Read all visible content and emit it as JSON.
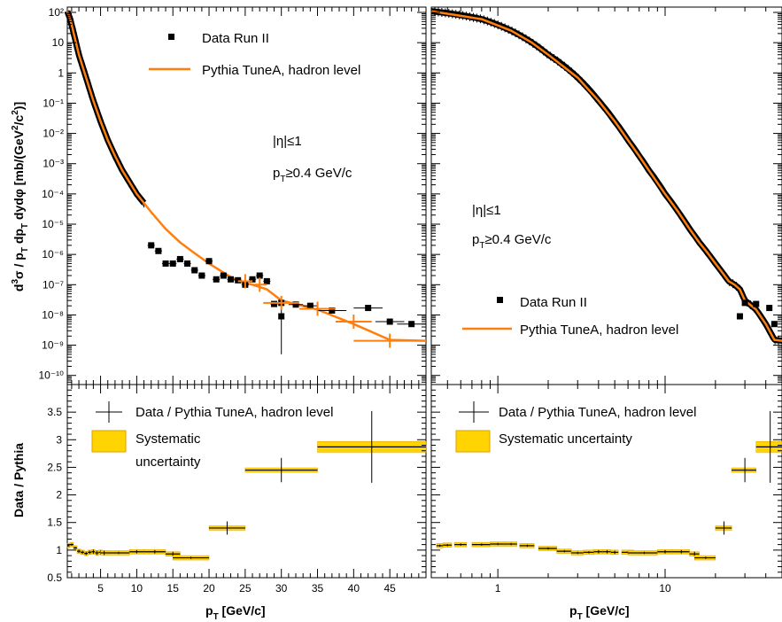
{
  "colors": {
    "data": "#000000",
    "mc": "#ff7f0e",
    "syst_fill": "#ffd400",
    "syst_edge": "#e0a000"
  },
  "chart_data": [
    {
      "id": "spectrum-linear",
      "type": "line",
      "xscale": "linear",
      "yscale": "log",
      "xlim": [
        0.4,
        50
      ],
      "ylim": [
        5e-11,
        150
      ],
      "xticks": [
        5,
        10,
        15,
        20,
        25,
        30,
        35,
        40,
        45
      ],
      "ylabel": "d³σ / p_T dp_T dydφ [mb/(GeV²/c²)]",
      "ytick_labels": [
        "10⁻¹⁰",
        "10⁻⁹",
        "10⁻⁸",
        "10⁻⁷",
        "10⁻⁶",
        "10⁻⁵",
        "10⁻⁴",
        "10⁻³",
        "10⁻²",
        "10⁻¹",
        "1",
        "10",
        "10²"
      ],
      "annotations": [
        "|η|≤1",
        "p_T≥0.4 GeV/c"
      ],
      "legend": {
        "position": "top-left",
        "entries": [
          "Data Run II",
          "Pythia TuneA, hadron level"
        ]
      },
      "series": [
        {
          "name": "Data Run II",
          "marker": "square",
          "x": [
            12,
            13,
            14,
            15,
            16,
            17,
            18,
            19,
            20,
            21,
            22,
            23,
            24,
            25,
            26,
            27,
            28,
            29,
            30,
            32,
            34,
            37,
            42,
            45,
            48
          ],
          "y": [
            2e-06,
            1.3e-06,
            5e-07,
            5e-07,
            7e-07,
            5e-07,
            3e-07,
            2e-07,
            6e-07,
            1.5e-07,
            2e-07,
            1.5e-07,
            1.4e-07,
            1e-07,
            1.5e-07,
            2e-07,
            1.3e-07,
            2.3e-08,
            2.5e-08,
            2.2e-08,
            2e-08,
            1.4e-08,
            1.7e-08,
            6e-09,
            5e-09
          ],
          "x_err": [
            0.5,
            0.5,
            0.5,
            0.5,
            0.5,
            0.5,
            0.5,
            0.5,
            0.5,
            0.5,
            0.5,
            0.5,
            0.5,
            0.5,
            0.5,
            0.5,
            0.5,
            0.5,
            0.5,
            1,
            1,
            2,
            2,
            2,
            2
          ],
          "extra_points": [
            {
              "x": 30,
              "y": 9e-09,
              "y_low": 5e-10,
              "y_high": 2e-08
            }
          ]
        },
        {
          "name": "Pythia TuneA, hadron level",
          "x": [
            0.4,
            0.8,
            1.2,
            1.6,
            2.0,
            3.0,
            4.0,
            5.0,
            6.0,
            7.0,
            8.0,
            10,
            12,
            14,
            16,
            18,
            20,
            22,
            24,
            26,
            28,
            30,
            35,
            40,
            45,
            50
          ],
          "y": [
            110,
            60,
            25,
            10,
            4.0,
            0.7,
            0.12,
            0.025,
            0.006,
            0.0018,
            0.0006,
            0.0001,
            2.5e-05,
            7e-06,
            2.5e-06,
            1.1e-06,
            5e-07,
            2.5e-07,
            1.3e-07,
            1e-07,
            7e-08,
            3e-08,
            1.5e-08,
            5e-09,
            1.5e-09,
            1.4e-09
          ]
        }
      ]
    },
    {
      "id": "spectrum-log",
      "type": "line",
      "xscale": "log",
      "yscale": "log",
      "xlim": [
        0.4,
        50
      ],
      "ylim": [
        5e-11,
        150
      ],
      "xticks": [
        1,
        10
      ],
      "xtick_labels": [
        "1",
        "10"
      ],
      "annotations": [
        "|η|≤1",
        "p_T≥0.4 GeV/c"
      ],
      "legend": {
        "position": "bottom-left",
        "entries": [
          "Data Run II",
          "Pythia TuneA, hadron level"
        ]
      },
      "series": [
        {
          "name": "Data Run II",
          "x": [
            0.4,
            0.8,
            1.2,
            1.6,
            2.0,
            3.0,
            4.0,
            5.0,
            6.0,
            7.0,
            8.0,
            10,
            12,
            14,
            16,
            18,
            20,
            22,
            24,
            26,
            28,
            30,
            35,
            40,
            45,
            50
          ],
          "y": [
            110,
            60,
            25,
            10,
            4.0,
            0.7,
            0.12,
            0.025,
            0.006,
            0.0018,
            0.0006,
            0.0001,
            2.5e-05,
            7e-06,
            2.5e-06,
            1.1e-06,
            5e-07,
            2.5e-07,
            1.3e-07,
            1e-07,
            7e-08,
            3e-08,
            1.5e-08,
            5e-09,
            1.5e-09,
            1.4e-09
          ]
        },
        {
          "name": "Pythia TuneA, hadron level",
          "x": [
            0.4,
            0.8,
            1.2,
            1.6,
            2.0,
            3.0,
            4.0,
            5.0,
            6.0,
            7.0,
            8.0,
            10,
            12,
            14,
            16,
            18,
            20,
            22,
            24,
            26,
            28,
            30,
            35,
            40,
            45,
            50
          ],
          "y": [
            110,
            60,
            25,
            10,
            4.0,
            0.7,
            0.12,
            0.025,
            0.006,
            0.0018,
            0.0006,
            0.0001,
            2.5e-05,
            7e-06,
            2.5e-06,
            1.1e-06,
            5e-07,
            2.5e-07,
            1.3e-07,
            1e-07,
            7e-08,
            3e-08,
            1.5e-08,
            5e-09,
            1.5e-09,
            1.4e-09
          ]
        }
      ]
    },
    {
      "id": "ratio-linear",
      "type": "line",
      "xscale": "linear",
      "xlim": [
        0.4,
        50
      ],
      "ylim": [
        0.5,
        4.0
      ],
      "xticks": [
        5,
        10,
        15,
        20,
        25,
        30,
        35,
        40,
        45
      ],
      "yticks": [
        0.5,
        1,
        1.5,
        2,
        2.5,
        3,
        3.5
      ],
      "xlabel": "p_T [GeV/c]",
      "ylabel": "Data / Pythia",
      "legend": {
        "position": "top-left",
        "entries": [
          "Data / Pythia TuneA, hadron level",
          "Systematic uncertainty"
        ]
      },
      "series": [
        {
          "name": "Data / Pythia TuneA, hadron level",
          "x": [
            0.5,
            1.0,
            1.5,
            2.0,
            2.5,
            3.0,
            3.5,
            4.0,
            4.5,
            5.0,
            5.5,
            7.5,
            10.0,
            12.5,
            15.0,
            17.5,
            22.5,
            30.0,
            42.5
          ],
          "y": [
            1.08,
            1.1,
            1.04,
            0.98,
            0.96,
            0.94,
            0.96,
            0.97,
            0.95,
            0.96,
            0.95,
            0.95,
            0.97,
            0.97,
            0.93,
            0.86,
            1.4,
            2.45,
            2.87
          ],
          "x_err": [
            0.25,
            0.25,
            0.25,
            0.25,
            0.25,
            0.25,
            0.25,
            0.25,
            0.25,
            0.25,
            0.5,
            1.5,
            1.0,
            1.5,
            1.0,
            2.5,
            2.5,
            5.0,
            7.5
          ],
          "y_err": [
            0.02,
            0.02,
            0.02,
            0.03,
            0.03,
            0.03,
            0.03,
            0.04,
            0.04,
            0.04,
            0.04,
            0.02,
            0.03,
            0.03,
            0.04,
            0.02,
            0.12,
            0.22,
            0.65
          ]
        }
      ]
    },
    {
      "id": "ratio-log",
      "type": "line",
      "xscale": "log",
      "xlim": [
        0.4,
        50
      ],
      "ylim": [
        0.5,
        4.0
      ],
      "xticks": [
        1,
        10
      ],
      "xtick_labels": [
        "1",
        "10"
      ],
      "xlabel": "p_T [GeV/c]",
      "legend": {
        "position": "top-left",
        "entries": [
          "Data / Pythia TuneA, hadron level",
          "Systematic uncertainty"
        ]
      },
      "series": [
        {
          "name": "Data / Pythia TuneA, hadron level",
          "x": [
            0.45,
            0.5,
            0.6,
            0.8,
            1.0,
            1.2,
            1.5,
            2.0,
            2.5,
            3.0,
            3.5,
            4.0,
            4.5,
            5.0,
            6.0,
            7.5,
            10.0,
            12.5,
            15.0,
            17.5,
            22.5,
            30.0,
            42.5
          ],
          "y": [
            1.08,
            1.09,
            1.1,
            1.1,
            1.11,
            1.11,
            1.08,
            1.03,
            0.98,
            0.95,
            0.96,
            0.97,
            0.97,
            0.96,
            0.96,
            0.95,
            0.97,
            0.97,
            0.93,
            0.86,
            1.4,
            2.45,
            2.87
          ],
          "x_err": [
            0.02,
            0.03,
            0.05,
            0.1,
            0.1,
            0.1,
            0.15,
            0.25,
            0.25,
            0.25,
            0.25,
            0.25,
            0.25,
            0.25,
            0.5,
            1.5,
            1.0,
            1.5,
            1.0,
            2.5,
            2.5,
            5.0,
            7.5
          ],
          "y_err": [
            0.02,
            0.02,
            0.02,
            0.02,
            0.02,
            0.02,
            0.02,
            0.02,
            0.02,
            0.02,
            0.02,
            0.03,
            0.03,
            0.03,
            0.02,
            0.02,
            0.03,
            0.03,
            0.04,
            0.02,
            0.12,
            0.22,
            0.65
          ]
        }
      ]
    }
  ],
  "legend_labels": {
    "data": "Data Run II",
    "pythia": "Pythia TuneA, hadron level",
    "ratio": "Data / Pythia TuneA, hadron level",
    "syst_left_line1": "Systematic",
    "syst_left_line2": "uncertainty",
    "syst_right": "Systematic uncertainty"
  },
  "annotations": {
    "eta": "|η|≤1",
    "pt_prefix": "p",
    "pt_sub": "T",
    "pt_suffix": "≥0.4 GeV/c"
  },
  "axis_titles": {
    "x_main": "p",
    "x_sub": "T",
    "x_unit": " [GeV/c]",
    "ratio_y": "Data / Pythia",
    "spectrum_y_part1": "d",
    "spectrum_y_sup3": "3",
    "spectrum_y_part2": "σ / p",
    "spectrum_y_sub1": "T",
    "spectrum_y_part3": " dp",
    "spectrum_y_sub2": "T",
    "spectrum_y_part4": " dydφ [mb/(GeV",
    "spectrum_y_sup2a": "2",
    "spectrum_y_part5": "/c",
    "spectrum_y_sup2b": "2",
    "spectrum_y_part6": ")]"
  }
}
